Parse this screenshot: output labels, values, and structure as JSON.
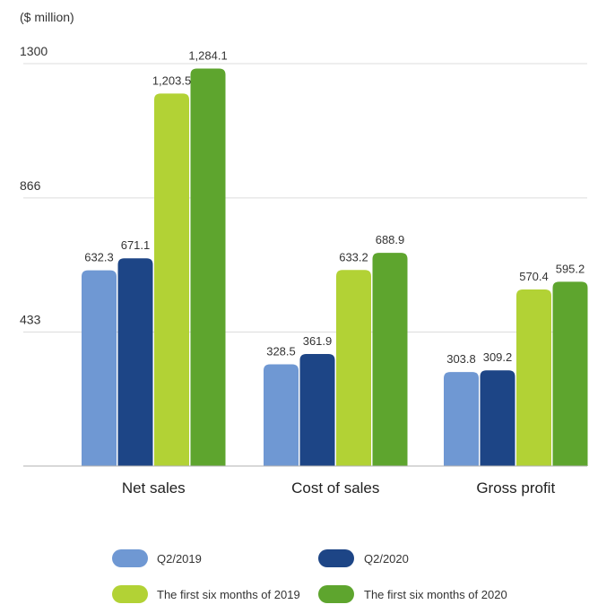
{
  "chart_data": {
    "type": "bar",
    "unit_label": "($ million)",
    "categories": [
      "Net sales",
      "Cost of sales",
      "Gross profit"
    ],
    "series": [
      {
        "name": "Q2/2019",
        "color": "#6f98d3",
        "values": [
          632.3,
          328.5,
          303.8
        ],
        "labels": [
          "632.3",
          "328.5",
          "303.8"
        ]
      },
      {
        "name": "Q2/2020",
        "color": "#1d4586",
        "values": [
          671.1,
          361.9,
          309.2
        ],
        "labels": [
          "671.1",
          "361.9",
          "309.2"
        ]
      },
      {
        "name": "The first six months of 2019",
        "color": "#b2d235",
        "values": [
          1203.5,
          633.2,
          570.4
        ],
        "labels": [
          "1,203.5",
          "633.2",
          "570.4"
        ]
      },
      {
        "name": "The first six months of 2020",
        "color": "#5ea52e",
        "values": [
          1284.1,
          688.9,
          595.2
        ],
        "labels": [
          "1,284.1",
          "688.9",
          "595.2"
        ]
      }
    ],
    "y_ticks": [
      {
        "value": 433,
        "label": "433"
      },
      {
        "value": 866,
        "label": "866"
      },
      {
        "value": 1300,
        "label": "1300"
      }
    ],
    "ylim": [
      0,
      1300
    ],
    "grid": true,
    "legend_position": "bottom"
  }
}
